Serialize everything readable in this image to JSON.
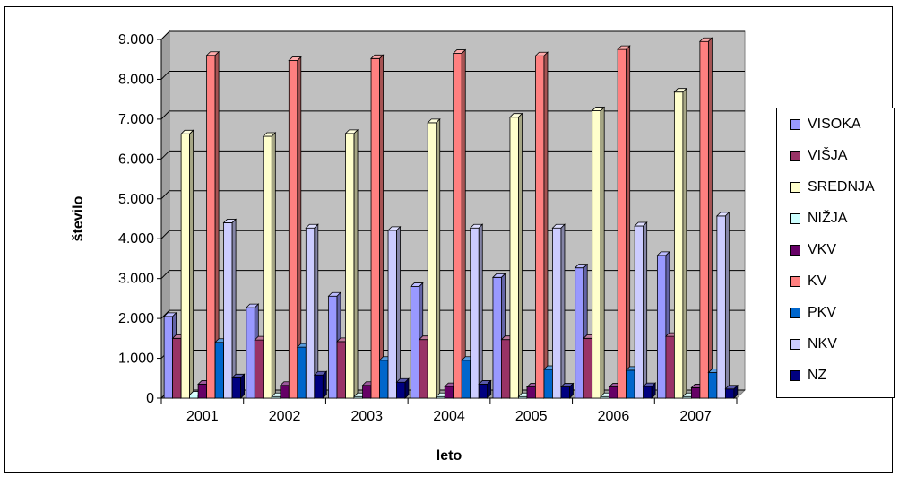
{
  "chart_data": {
    "type": "bar",
    "title": "",
    "xlabel": "leto",
    "ylabel": "število",
    "ylim": [
      0,
      9000
    ],
    "yticks": [
      "0",
      "1.000",
      "2.000",
      "3.000",
      "4.000",
      "5.000",
      "6.000",
      "7.000",
      "8.000",
      "9.000"
    ],
    "grid": true,
    "legend_position": "right",
    "categories": [
      "2001",
      "2002",
      "2003",
      "2004",
      "2005",
      "2006",
      "2007"
    ],
    "series": [
      {
        "name": "VISOKA",
        "color": "#9999ff",
        "values": [
          2050,
          2270,
          2560,
          2800,
          3030,
          3270,
          3580
        ]
      },
      {
        "name": "VIŠJA",
        "color": "#993366",
        "values": [
          1500,
          1460,
          1420,
          1470,
          1470,
          1500,
          1550
        ]
      },
      {
        "name": "SREDNJA",
        "color": "#ffffcc",
        "values": [
          6630,
          6570,
          6640,
          6910,
          7050,
          7210,
          7680
        ]
      },
      {
        "name": "NIŽJA",
        "color": "#ccffff",
        "values": [
          80,
          40,
          40,
          40,
          40,
          40,
          40
        ]
      },
      {
        "name": "VKV",
        "color": "#660066",
        "values": [
          350,
          320,
          320,
          290,
          280,
          280,
          260
        ]
      },
      {
        "name": "KV",
        "color": "#ff8080",
        "values": [
          8600,
          8470,
          8520,
          8650,
          8590,
          8750,
          8950
        ]
      },
      {
        "name": "PKV",
        "color": "#0066cc",
        "values": [
          1400,
          1280,
          950,
          950,
          720,
          700,
          640
        ]
      },
      {
        "name": "NKV",
        "color": "#ccccff",
        "values": [
          4400,
          4270,
          4210,
          4270,
          4270,
          4320,
          4570
        ]
      },
      {
        "name": "NZ",
        "color": "#000080",
        "values": [
          510,
          580,
          400,
          350,
          280,
          290,
          230
        ]
      }
    ]
  }
}
